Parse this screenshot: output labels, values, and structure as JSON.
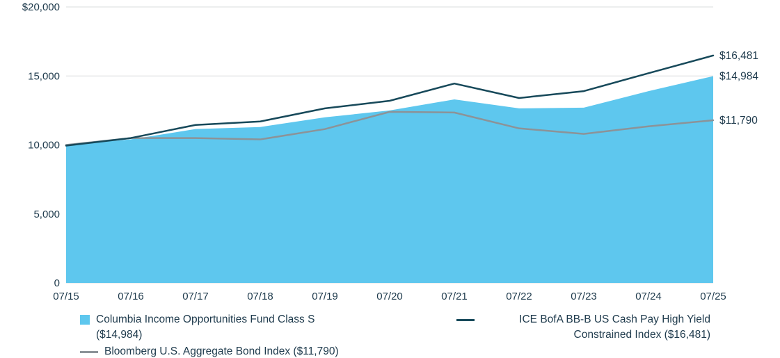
{
  "chart_data": {
    "type": "area",
    "title": "",
    "xlabel": "",
    "ylabel": "",
    "ylim": [
      0,
      20000
    ],
    "grid_on": true,
    "grid_color": "#D9DCDE",
    "text_color": "#1E3A4C",
    "categories": [
      "07/15",
      "07/16",
      "07/17",
      "07/18",
      "07/19",
      "07/20",
      "07/21",
      "07/22",
      "07/23",
      "07/24",
      "07/25"
    ],
    "y_axis": {
      "ticks": [
        {
          "label": "$20,000",
          "value": 20000
        },
        {
          "label": "15,000",
          "value": 15000
        },
        {
          "label": "10,000",
          "value": 10000
        },
        {
          "label": "5,000",
          "value": 5000
        },
        {
          "label": "0",
          "value": 0
        }
      ]
    },
    "series": [
      {
        "name": "Columbia Income Opportunities Fund Class S ($14,984)",
        "type": "area",
        "color": "#5EC7EE",
        "end_label": "$14,984",
        "values": [
          10000,
          10400,
          11150,
          11300,
          12000,
          12500,
          13300,
          12650,
          12700,
          13900,
          14984
        ]
      },
      {
        "name": "Bloomberg U.S. Aggregate Bond Index ($11,790)",
        "type": "line",
        "color": "#8C9398",
        "end_label": "$11,790",
        "values": [
          10000,
          10500,
          10500,
          10400,
          11150,
          12400,
          12350,
          11200,
          10800,
          11350,
          11790
        ]
      },
      {
        "name": "ICE BofA BB-B US Cash Pay High Yield Constrained Index ($16,481)",
        "type": "line",
        "color": "#17495A",
        "end_label": "$16,481",
        "values": [
          9950,
          10500,
          11450,
          11700,
          12650,
          13200,
          14450,
          13400,
          13900,
          15200,
          16481
        ]
      }
    ],
    "legend_position": "bottom"
  }
}
